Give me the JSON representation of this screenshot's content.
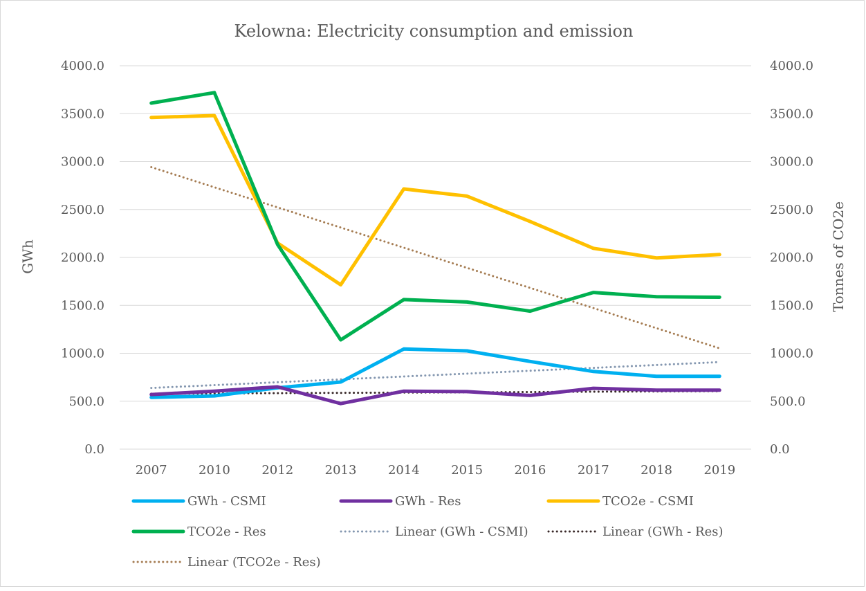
{
  "chart_data": {
    "type": "line",
    "title": "Kelowna: Electricity consumption and emission",
    "categories": [
      "2007",
      "2010",
      "2012",
      "2013",
      "2014",
      "2015",
      "2016",
      "2017",
      "2018",
      "2019"
    ],
    "y_left": {
      "label": "GWh",
      "min": 0,
      "max": 4000,
      "step": 500
    },
    "y_right": {
      "label": "Tonnes of CO2e",
      "min": 0,
      "max": 4000,
      "step": 500
    },
    "yticks_left": [
      "0.0",
      "500.0",
      "1000.0",
      "1500.0",
      "2000.0",
      "2500.0",
      "3000.0",
      "3500.0",
      "4000.0"
    ],
    "yticks_right": [
      "0.0",
      "500.0",
      "1000.0",
      "1500.0",
      "2000.0",
      "2500.0",
      "3000.0",
      "3500.0",
      "4000.0"
    ],
    "grid": true,
    "legend_position": "bottom",
    "series": [
      {
        "name": "GWh - CSMI",
        "axis": "left",
        "color": "#00b0f0",
        "style": "solid",
        "values": [
          540,
          555,
          640,
          700,
          1045,
          1025,
          915,
          810,
          760,
          760
        ]
      },
      {
        "name": "GWh - Res",
        "axis": "left",
        "color": "#7030a0",
        "style": "solid",
        "values": [
          570,
          605,
          650,
          475,
          605,
          600,
          560,
          635,
          615,
          615
        ]
      },
      {
        "name": "TCO2e - CSMI",
        "axis": "right",
        "color": "#ffc000",
        "style": "solid",
        "values": [
          3460,
          3480,
          2150,
          1715,
          2715,
          2640,
          2375,
          2095,
          1995,
          2030
        ]
      },
      {
        "name": "TCO2e - Res",
        "axis": "right",
        "color": "#00b050",
        "style": "solid",
        "values": [
          3610,
          3720,
          2135,
          1140,
          1560,
          1535,
          1440,
          1635,
          1590,
          1585
        ]
      },
      {
        "name": "Linear (GWh - CSMI)",
        "axis": "left",
        "color": "#8497b0",
        "style": "dotted",
        "values": [
          638,
          668,
          698,
          728,
          758,
          788,
          818,
          848,
          878,
          908
        ]
      },
      {
        "name": "Linear (GWh - Res)",
        "axis": "left",
        "color": "#3a2a2a",
        "style": "dotted",
        "values": [
          578,
          581,
          584,
          587,
          590,
          593,
          596,
          599,
          602,
          605
        ]
      },
      {
        "name": "Linear (TCO2e - Res)",
        "axis": "right",
        "color": "#a57c52",
        "style": "dotted",
        "values": [
          2942,
          2732,
          2522,
          2312,
          2102,
          1892,
          1682,
          1472,
          1262,
          1052
        ]
      }
    ]
  }
}
